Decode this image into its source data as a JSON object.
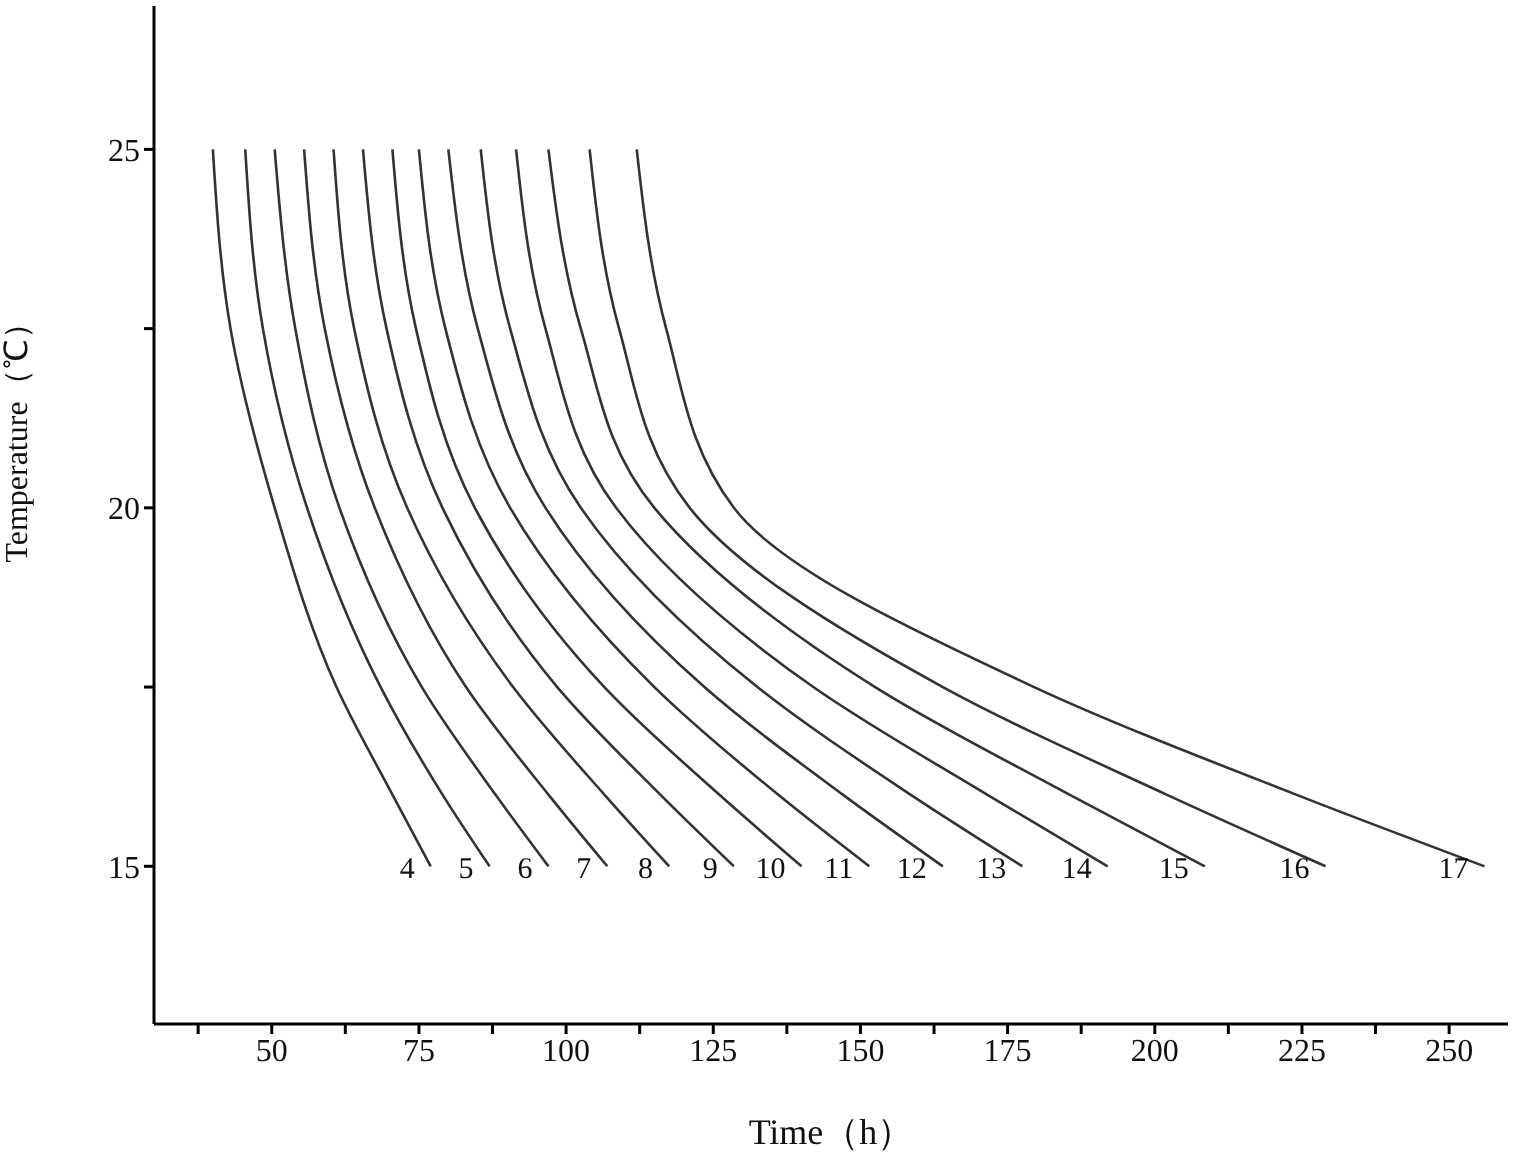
{
  "chart_data": {
    "type": "line",
    "xlabel": "Time（h）",
    "ylabel": "Temperature（℃）",
    "xlim": [
      30,
      260
    ],
    "ylim": [
      12.8,
      27
    ],
    "xticks": [
      {
        "value": 37.5,
        "label": null
      },
      50,
      {
        "value": 62.5,
        "label": null
      },
      75,
      {
        "value": 87.5,
        "label": null
      },
      100,
      {
        "value": 112.5,
        "label": null
      },
      125,
      {
        "value": 137.5,
        "label": null
      },
      150,
      {
        "value": 162.5,
        "label": null
      },
      175,
      {
        "value": 187.5,
        "label": null
      },
      200,
      {
        "value": 212.5,
        "label": null
      },
      225,
      {
        "value": 237.5,
        "label": null
      },
      250
    ],
    "yticks": [
      15,
      {
        "value": 17.5,
        "label": null
      },
      20,
      {
        "value": 22.5,
        "label": null
      },
      25
    ],
    "grid": false,
    "legend": false,
    "marker": "none",
    "line_style": "solid",
    "series": [
      {
        "name": "4",
        "color": "#333333",
        "x": [
          40,
          43,
          50.5,
          61,
          70.5,
          77
        ],
        "values": [
          25,
          22.5,
          20,
          17.5,
          16,
          15
        ]
      },
      {
        "name": "5",
        "color": "#333333",
        "x": [
          45.5,
          48.5,
          56,
          68.5,
          79,
          87
        ],
        "values": [
          25,
          22.5,
          20,
          17.5,
          16,
          15
        ]
      },
      {
        "name": "6",
        "color": "#333333",
        "x": [
          50.5,
          54,
          61.5,
          75.5,
          88,
          97
        ],
        "values": [
          25,
          22.5,
          20,
          17.5,
          16,
          15
        ]
      },
      {
        "name": "7",
        "color": "#333333",
        "x": [
          55.5,
          59,
          67.5,
          83,
          97,
          107
        ],
        "values": [
          25,
          22.5,
          20,
          17.5,
          16,
          15
        ]
      },
      {
        "name": "8",
        "color": "#333333",
        "x": [
          60.5,
          64,
          73,
          91,
          106.5,
          117.5
        ],
        "values": [
          25,
          22.5,
          20,
          17.5,
          16,
          15
        ]
      },
      {
        "name": "9",
        "color": "#333333",
        "x": [
          65.5,
          69.5,
          79,
          98.5,
          116,
          128.5
        ],
        "values": [
          25,
          22.5,
          20,
          17.5,
          16,
          15
        ]
      },
      {
        "name": "10",
        "color": "#333333",
        "x": [
          70.5,
          74.5,
          84.5,
          106.5,
          126,
          140
        ],
        "values": [
          25,
          22.5,
          20,
          17.5,
          16,
          15
        ]
      },
      {
        "name": "11",
        "color": "#333333",
        "x": [
          75,
          79.5,
          90.5,
          115,
          136,
          151.5
        ],
        "values": [
          25,
          22.5,
          20,
          17.5,
          16,
          15
        ]
      },
      {
        "name": "12",
        "color": "#333333",
        "x": [
          80,
          85,
          96.5,
          123.5,
          147,
          164
        ],
        "values": [
          25,
          22.5,
          20,
          17.5,
          16,
          15
        ]
      },
      {
        "name": "13",
        "color": "#333333",
        "x": [
          85.5,
          90.5,
          102.5,
          132.5,
          158.5,
          177.5
        ],
        "values": [
          25,
          22.5,
          20,
          17.5,
          16,
          15
        ]
      },
      {
        "name": "14",
        "color": "#333333",
        "x": [
          91.5,
          96.5,
          108.5,
          142,
          171.5,
          192
        ],
        "values": [
          25,
          22.5,
          20,
          17.5,
          16,
          15
        ]
      },
      {
        "name": "15",
        "color": "#333333",
        "x": [
          97,
          102.5,
          115,
          152.5,
          185.5,
          208.5
        ],
        "values": [
          25,
          22.5,
          20,
          17.5,
          16,
          15
        ]
      },
      {
        "name": "16",
        "color": "#333333",
        "x": [
          104,
          109,
          121,
          164,
          202,
          229
        ],
        "values": [
          25,
          22.5,
          20,
          17.5,
          16,
          15
        ]
      },
      {
        "name": "17",
        "color": "#333333",
        "x": [
          112,
          117,
          128.5,
          179.5,
          224,
          256
        ],
        "values": [
          25,
          22.5,
          20,
          17.5,
          16,
          15
        ]
      }
    ]
  }
}
